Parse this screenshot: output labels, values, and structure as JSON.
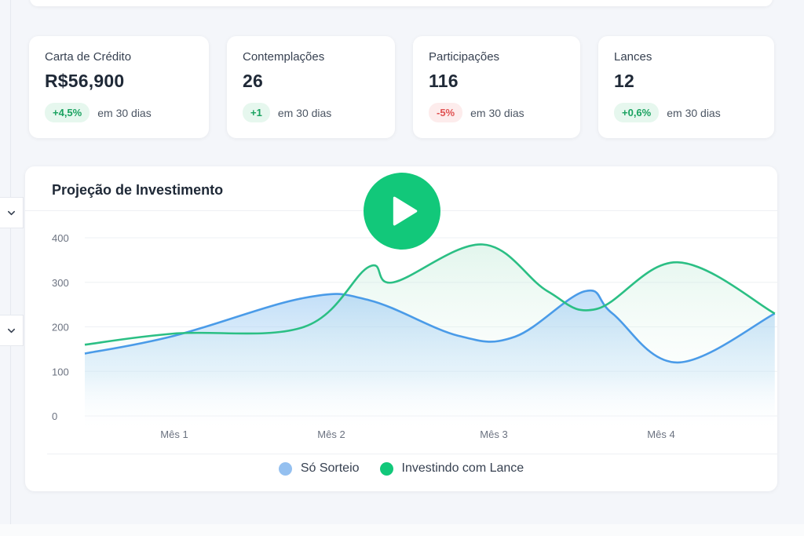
{
  "stats": [
    {
      "label": "Carta de Crédito",
      "value": "R$56,900",
      "change": "+4,5%",
      "trend": "up",
      "period": "em 30 dias"
    },
    {
      "label": "Contemplações",
      "value": "26",
      "change": "+1",
      "trend": "up",
      "period": "em 30 dias"
    },
    {
      "label": "Participações",
      "value": "116",
      "change": "-5%",
      "trend": "down",
      "period": "em 30 dias"
    },
    {
      "label": "Lances",
      "value": "12",
      "change": "+0,6%",
      "trend": "up",
      "period": "em 30 dias"
    }
  ],
  "chart_panel": {
    "title": "Projeção de Investimento",
    "play_icon": "play-icon"
  },
  "sidebar": {
    "toggle_icon": "chevron-down-icon"
  },
  "colors": {
    "green": "#1aa260",
    "accent_green": "#12c87a",
    "blue_series": "#4a9be8",
    "green_series": "#2bbf84",
    "red": "#e05252"
  },
  "chart_data": {
    "type": "area",
    "title": "Projeção de Investimento",
    "x_ticks": [
      "Mês 1",
      "Mês 2",
      "Mês 3",
      "Mês 4"
    ],
    "y_ticks": [
      0,
      100,
      200,
      300,
      400
    ],
    "ylim": [
      0,
      400
    ],
    "xlim": [
      0.35,
      4.7
    ],
    "grid": true,
    "legend_position": "bottom-center",
    "series": [
      {
        "name": "Só Sorteio",
        "color": "#4a9be8",
        "x": [
          0.35,
          1.0,
          1.8,
          2.2,
          2.75,
          3.1,
          3.53,
          3.7,
          4.1,
          4.7
        ],
        "values": [
          140,
          180,
          265,
          260,
          180,
          178,
          280,
          230,
          120,
          230
        ]
      },
      {
        "name": "Investindo com Lance",
        "color": "#2bbf84",
        "x": [
          0.35,
          1.0,
          1.8,
          2.2,
          2.35,
          2.9,
          3.3,
          3.6,
          4.1,
          4.7
        ],
        "values": [
          160,
          185,
          200,
          335,
          300,
          385,
          280,
          240,
          345,
          230
        ]
      }
    ]
  }
}
